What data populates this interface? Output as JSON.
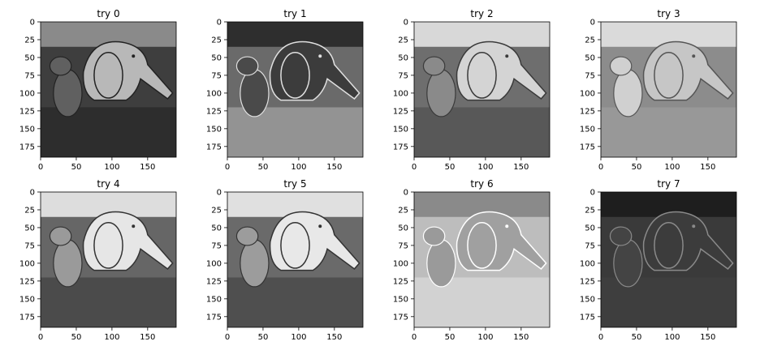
{
  "chart_data": [
    {
      "type": "image",
      "title": "try 0",
      "xlim": [
        0,
        190
      ],
      "ylim": [
        190,
        0
      ],
      "xticks": [
        0,
        50,
        100,
        150
      ],
      "yticks": [
        0,
        25,
        50,
        75,
        100,
        125,
        150,
        175
      ],
      "tone": {
        "bg": "#3e3e3e",
        "top": "#8a8a8a",
        "floor": "#2a2a2a",
        "body": "#b8b8b8",
        "small": "#606060",
        "edge": "#222222"
      }
    },
    {
      "type": "image",
      "title": "try 1",
      "xlim": [
        0,
        190
      ],
      "ylim": [
        190,
        0
      ],
      "xticks": [
        0,
        50,
        100,
        150
      ],
      "yticks": [
        0,
        25,
        50,
        75,
        100,
        125,
        150,
        175
      ],
      "tone": {
        "bg": "#6a6a6a",
        "top": "#2e2e2e",
        "floor": "#9a9a9a",
        "body": "#3c3c3c",
        "small": "#4a4a4a",
        "edge": "#e0e0e0"
      }
    },
    {
      "type": "image",
      "title": "try 2",
      "xlim": [
        0,
        190
      ],
      "ylim": [
        190,
        0
      ],
      "xticks": [
        0,
        50,
        100,
        150
      ],
      "yticks": [
        0,
        25,
        50,
        75,
        100,
        125,
        150,
        175
      ],
      "tone": {
        "bg": "#6e6e6e",
        "top": "#d8d8d8",
        "floor": "#555555",
        "body": "#d4d4d4",
        "small": "#8a8a8a",
        "edge": "#3a3a3a"
      }
    },
    {
      "type": "image",
      "title": "try 3",
      "xlim": [
        0,
        190
      ],
      "ylim": [
        190,
        0
      ],
      "xticks": [
        0,
        50,
        100,
        150
      ],
      "yticks": [
        0,
        25,
        50,
        75,
        100,
        125,
        150,
        175
      ],
      "tone": {
        "bg": "#8c8c8c",
        "top": "#dadada",
        "floor": "#9a9a9a",
        "body": "#c6c6c6",
        "small": "#d0d0d0",
        "edge": "#555555"
      }
    },
    {
      "type": "image",
      "title": "try 4",
      "xlim": [
        0,
        190
      ],
      "ylim": [
        190,
        0
      ],
      "xticks": [
        0,
        50,
        100,
        150
      ],
      "yticks": [
        0,
        25,
        50,
        75,
        100,
        125,
        150,
        175
      ],
      "tone": {
        "bg": "#666666",
        "top": "#dddddd",
        "floor": "#464646",
        "body": "#e6e6e6",
        "small": "#9a9a9a",
        "edge": "#333333"
      }
    },
    {
      "type": "image",
      "title": "try 5",
      "xlim": [
        0,
        190
      ],
      "ylim": [
        190,
        0
      ],
      "xticks": [
        0,
        50,
        100,
        150
      ],
      "yticks": [
        0,
        25,
        50,
        75,
        100,
        125,
        150,
        175
      ],
      "tone": {
        "bg": "#6a6a6a",
        "top": "#e0e0e0",
        "floor": "#4a4a4a",
        "body": "#e8e8e8",
        "small": "#9c9c9c",
        "edge": "#333333"
      }
    },
    {
      "type": "image",
      "title": "try 6",
      "xlim": [
        0,
        190
      ],
      "ylim": [
        190,
        0
      ],
      "xticks": [
        0,
        50,
        100,
        150
      ],
      "yticks": [
        0,
        25,
        50,
        75,
        100,
        125,
        150,
        175
      ],
      "tone": {
        "bg": "#bdbdbd",
        "top": "#8a8a8a",
        "floor": "#d6d6d6",
        "body": "#a0a0a0",
        "small": "#9a9a9a",
        "edge": "#ffffff"
      }
    },
    {
      "type": "image",
      "title": "try 7",
      "xlim": [
        0,
        190
      ],
      "ylim": [
        190,
        0
      ],
      "xticks": [
        0,
        50,
        100,
        150
      ],
      "yticks": [
        0,
        25,
        50,
        75,
        100,
        125,
        150,
        175
      ],
      "tone": {
        "bg": "#3a3a3a",
        "top": "#1e1e1e",
        "floor": "#404040",
        "body": "#3c3c3c",
        "small": "#444444",
        "edge": "#8a8a8a"
      }
    }
  ]
}
